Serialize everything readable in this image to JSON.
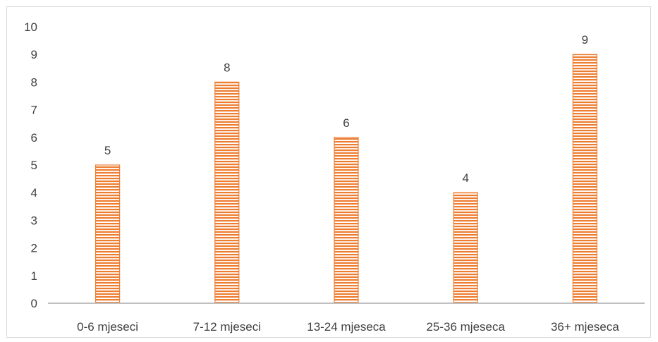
{
  "chart_data": {
    "type": "bar",
    "categories": [
      "0-6 mjeseci",
      "7-12 mjeseci",
      "13-24 mjeseca",
      "25-36 mjeseca",
      "36+ mjeseca"
    ],
    "values": [
      5,
      8,
      6,
      4,
      9
    ],
    "title": "",
    "xlabel": "",
    "ylabel": "",
    "ylim": [
      0,
      10
    ],
    "yticks": [
      0,
      1,
      2,
      3,
      4,
      5,
      6,
      7,
      8,
      9,
      10
    ],
    "grid": false,
    "legend": "none",
    "data_labels": true,
    "bar_color": "#ed7d31",
    "bar_pattern": "horizontal-stripes"
  }
}
